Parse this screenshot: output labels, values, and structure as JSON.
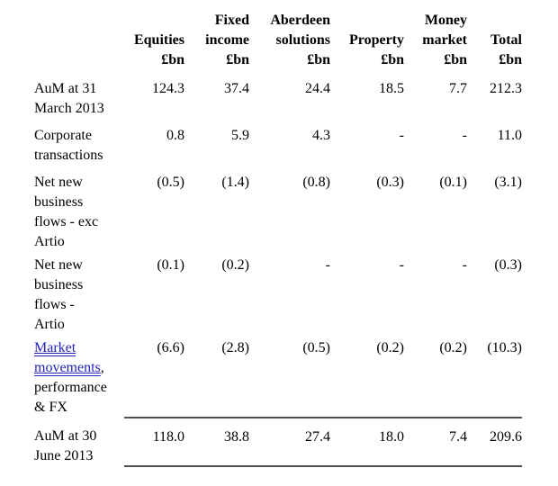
{
  "table": {
    "description": "AuM movements table",
    "link_color": "#2222bb",
    "rule_color": "#4f4f4f",
    "columns": [
      {
        "name": "Equities",
        "name_lines": [
          "Equities"
        ],
        "unit": "£bn"
      },
      {
        "name": "Fixed income",
        "name_lines": [
          "Fixed",
          "income"
        ],
        "unit": "£bn"
      },
      {
        "name": "Aberdeen solutions",
        "name_lines": [
          "Aberdeen",
          "solutions"
        ],
        "unit": "£bn"
      },
      {
        "name": "Property",
        "name_lines": [
          "Property"
        ],
        "unit": "£bn"
      },
      {
        "name": "Money market",
        "name_lines": [
          "Money",
          "market"
        ],
        "unit": "£bn"
      },
      {
        "name": "Total",
        "name_lines": [
          "Total"
        ],
        "unit": "£bn"
      }
    ],
    "rows": [
      {
        "label": "AuM at 31 March 2013",
        "label_lines": [
          "AuM at 31",
          "March 2013"
        ],
        "values": [
          "124.3",
          "37.4",
          "24.4",
          "18.5",
          "7.7",
          "212.3"
        ]
      },
      {
        "label": "Corporate transactions",
        "label_lines": [
          "Corporate",
          "transactions"
        ],
        "values": [
          "0.8",
          "5.9",
          "4.3",
          "-",
          "-",
          "11.0"
        ]
      },
      {
        "label": "Net new business flows - exc Artio",
        "label_lines": [
          "Net new",
          "business",
          "flows - exc",
          "Artio"
        ],
        "values": [
          "(0.5)",
          "(1.4)",
          "(0.8)",
          "(0.3)",
          "(0.1)",
          "(3.1)"
        ]
      },
      {
        "label": "Net new business flows - Artio",
        "label_lines": [
          "Net new",
          "business",
          "flows -",
          "Artio"
        ],
        "values": [
          "(0.1)",
          "(0.2)",
          "-",
          "-",
          "-",
          "(0.3)"
        ]
      },
      {
        "label": "Market movements, performance & FX",
        "label_link_text": "Market movements",
        "label_rest": ",\nperformance\n& FX",
        "values": [
          "(6.6)",
          "(2.8)",
          "(0.5)",
          "(0.2)",
          "(0.2)",
          "(10.3)"
        ]
      },
      {
        "label": "AuM at 30 June 2013",
        "label_lines": [
          "AuM at 30",
          "June 2013"
        ],
        "values": [
          "118.0",
          "38.8",
          "27.4",
          "18.0",
          "7.4",
          "209.6"
        ]
      }
    ]
  }
}
